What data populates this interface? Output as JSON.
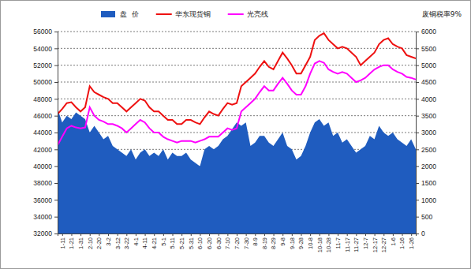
{
  "chart_data": {
    "type": "line",
    "annotation": "废铜税率9%",
    "categories": [
      null,
      "1-11",
      null,
      "1-21",
      null,
      "1-31",
      null,
      "2-10",
      null,
      "2-20",
      null,
      "3-2",
      null,
      "3-12",
      null,
      "3-22",
      null,
      "4-1",
      null,
      "4-11",
      null,
      "4-21",
      null,
      "5-1",
      null,
      "5-11",
      null,
      "5-21",
      null,
      "5-31",
      null,
      "6-10",
      null,
      "6-20",
      null,
      "6-30",
      null,
      "7-10",
      null,
      "7-20",
      null,
      "7-30",
      null,
      "8-9",
      null,
      "8-19",
      null,
      "8-29",
      null,
      "9-8",
      null,
      "9-18",
      null,
      "9-28",
      null,
      "10-8",
      null,
      "10-18",
      null,
      "10-28",
      null,
      "11-7",
      null,
      "11-17",
      null,
      "11-27",
      null,
      "12-7",
      null,
      "12-17",
      null,
      "12-27",
      null,
      "1-6",
      null,
      "1-16",
      null,
      "1-26",
      null
    ],
    "series": [
      {
        "name": "盘  价",
        "type": "area",
        "axis": "y2",
        "color": "#1f5cbf",
        "values": [
          3700,
          3300,
          3500,
          3400,
          3600,
          3500,
          3400,
          3000,
          3200,
          3000,
          2800,
          2900,
          2600,
          2500,
          2400,
          2300,
          2500,
          2200,
          2400,
          2500,
          2300,
          2400,
          2300,
          2500,
          2200,
          2400,
          2300,
          2300,
          2400,
          2200,
          2100,
          2000,
          2500,
          2600,
          2500,
          2600,
          2800,
          2900,
          3100,
          3300,
          3200,
          3300,
          2600,
          2700,
          2900,
          2900,
          2700,
          2600,
          2800,
          3000,
          2600,
          2500,
          2200,
          2300,
          2600,
          3000,
          3300,
          3400,
          3200,
          3300,
          2900,
          3000,
          2700,
          2800,
          2600,
          2400,
          2500,
          2600,
          2900,
          2800,
          3200,
          3000,
          2900,
          3000,
          2800,
          2700,
          2600,
          2800,
          2500
        ]
      },
      {
        "name": "华东现货铜",
        "type": "line",
        "color": "#ee1111",
        "values": [
          46200,
          46800,
          47500,
          47600,
          47000,
          46500,
          47000,
          49500,
          48800,
          48500,
          48200,
          48000,
          47500,
          47500,
          47000,
          46500,
          47000,
          47500,
          48000,
          47800,
          47000,
          46500,
          46500,
          46000,
          45500,
          45500,
          45000,
          45000,
          45500,
          45500,
          45200,
          45000,
          45800,
          46500,
          46200,
          46000,
          46800,
          47500,
          47300,
          47500,
          49500,
          50000,
          50500,
          51000,
          51800,
          52500,
          51800,
          51500,
          52500,
          53500,
          52800,
          52000,
          51000,
          51000,
          52000,
          53000,
          55000,
          55500,
          55800,
          55000,
          54500,
          54000,
          54200,
          54000,
          53500,
          53000,
          52000,
          52500,
          53000,
          53500,
          54500,
          55000,
          55200,
          54500,
          54200,
          54000,
          53200,
          53000,
          52800
        ]
      },
      {
        "name": "光亮线",
        "type": "line",
        "color": "#ff00ff",
        "values": [
          42500,
          43500,
          44500,
          44800,
          44600,
          44500,
          44600,
          47000,
          46000,
          45500,
          45300,
          45000,
          45000,
          44800,
          44500,
          44000,
          44500,
          45000,
          45500,
          45200,
          44500,
          44000,
          44000,
          43500,
          43200,
          43000,
          42800,
          43000,
          43000,
          43000,
          42800,
          43000,
          43200,
          43500,
          43500,
          43500,
          44000,
          44500,
          44300,
          44500,
          46500,
          47000,
          47500,
          48000,
          48800,
          49500,
          49000,
          49000,
          49800,
          50500,
          49800,
          49000,
          48500,
          48500,
          49500,
          51000,
          52200,
          52500,
          52300,
          51500,
          51200,
          51000,
          51200,
          51000,
          50500,
          50000,
          50200,
          50500,
          51000,
          51500,
          51800,
          52000,
          52000,
          51500,
          51200,
          51000,
          50600,
          50500,
          50300
        ]
      }
    ],
    "ylim": [
      32000,
      56000
    ],
    "yticks": [
      32000,
      34000,
      36000,
      38000,
      40000,
      42000,
      44000,
      46000,
      48000,
      50000,
      52000,
      54000,
      56000
    ],
    "y2lim": [
      0,
      6000
    ],
    "y2ticks": [
      0,
      500,
      1000,
      1500,
      2000,
      2500,
      3000,
      3500,
      4000,
      4500,
      5000,
      5500,
      6000
    ],
    "grid": true,
    "legend": "top"
  }
}
